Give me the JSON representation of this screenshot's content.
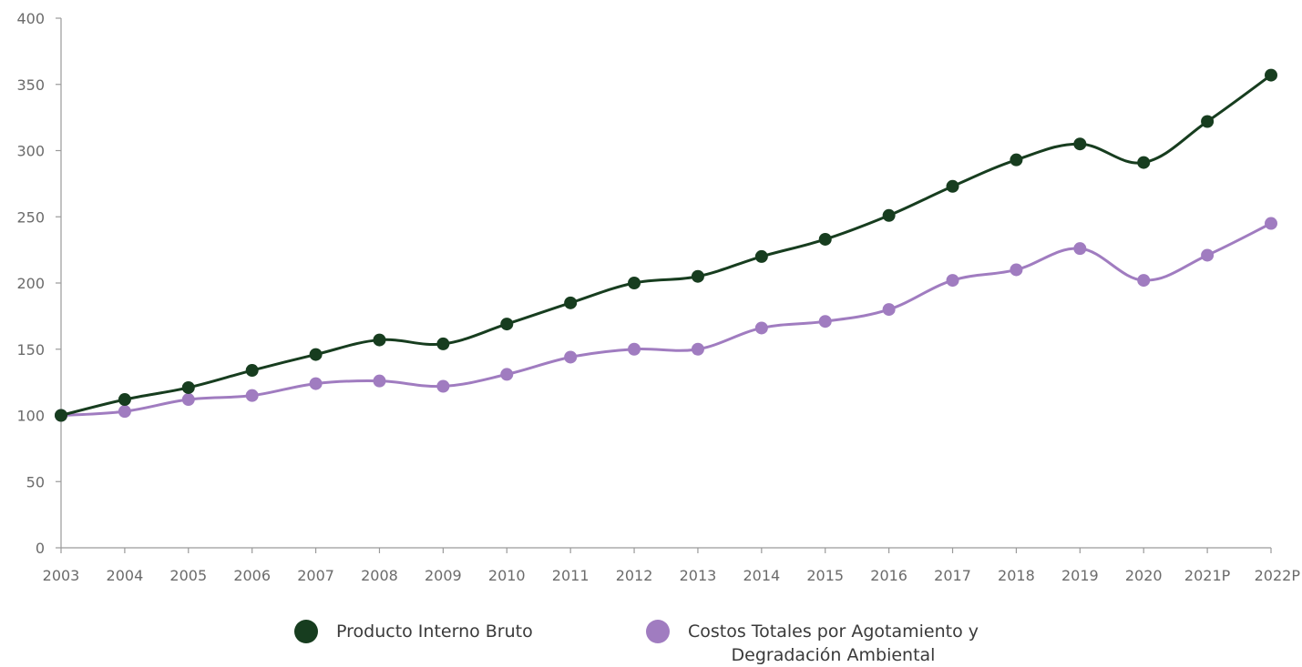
{
  "chart_data": {
    "type": "line",
    "categories": [
      "2003",
      "2004",
      "2005",
      "2006",
      "2007",
      "2008",
      "2009",
      "2010",
      "2011",
      "2012",
      "2013",
      "2014",
      "2015",
      "2016",
      "2017",
      "2018",
      "2019",
      "2020",
      "2021P",
      "2022P"
    ],
    "ylim": [
      0,
      400
    ],
    "yticks": [
      0,
      50,
      100,
      150,
      200,
      250,
      300,
      350,
      400
    ],
    "grid": false,
    "legend_position": "bottom",
    "series": [
      {
        "name": "Producto Interno Bruto",
        "color": "#173d1f",
        "values": [
          100,
          112,
          121,
          134,
          146,
          157,
          154,
          169,
          185,
          200,
          205,
          220,
          233,
          251,
          273,
          293,
          305,
          291,
          322,
          357
        ]
      },
      {
        "name": "Costos Totales por Agotamiento y Degradación Ambiental",
        "name_lines": [
          "Costos Totales por Agotamiento y",
          "Degradación Ambiental"
        ],
        "color": "#a07cc0",
        "values": [
          100,
          103,
          112,
          115,
          124,
          126,
          122,
          131,
          144,
          150,
          150,
          166,
          171,
          180,
          202,
          210,
          226,
          202,
          221,
          245
        ]
      }
    ]
  }
}
